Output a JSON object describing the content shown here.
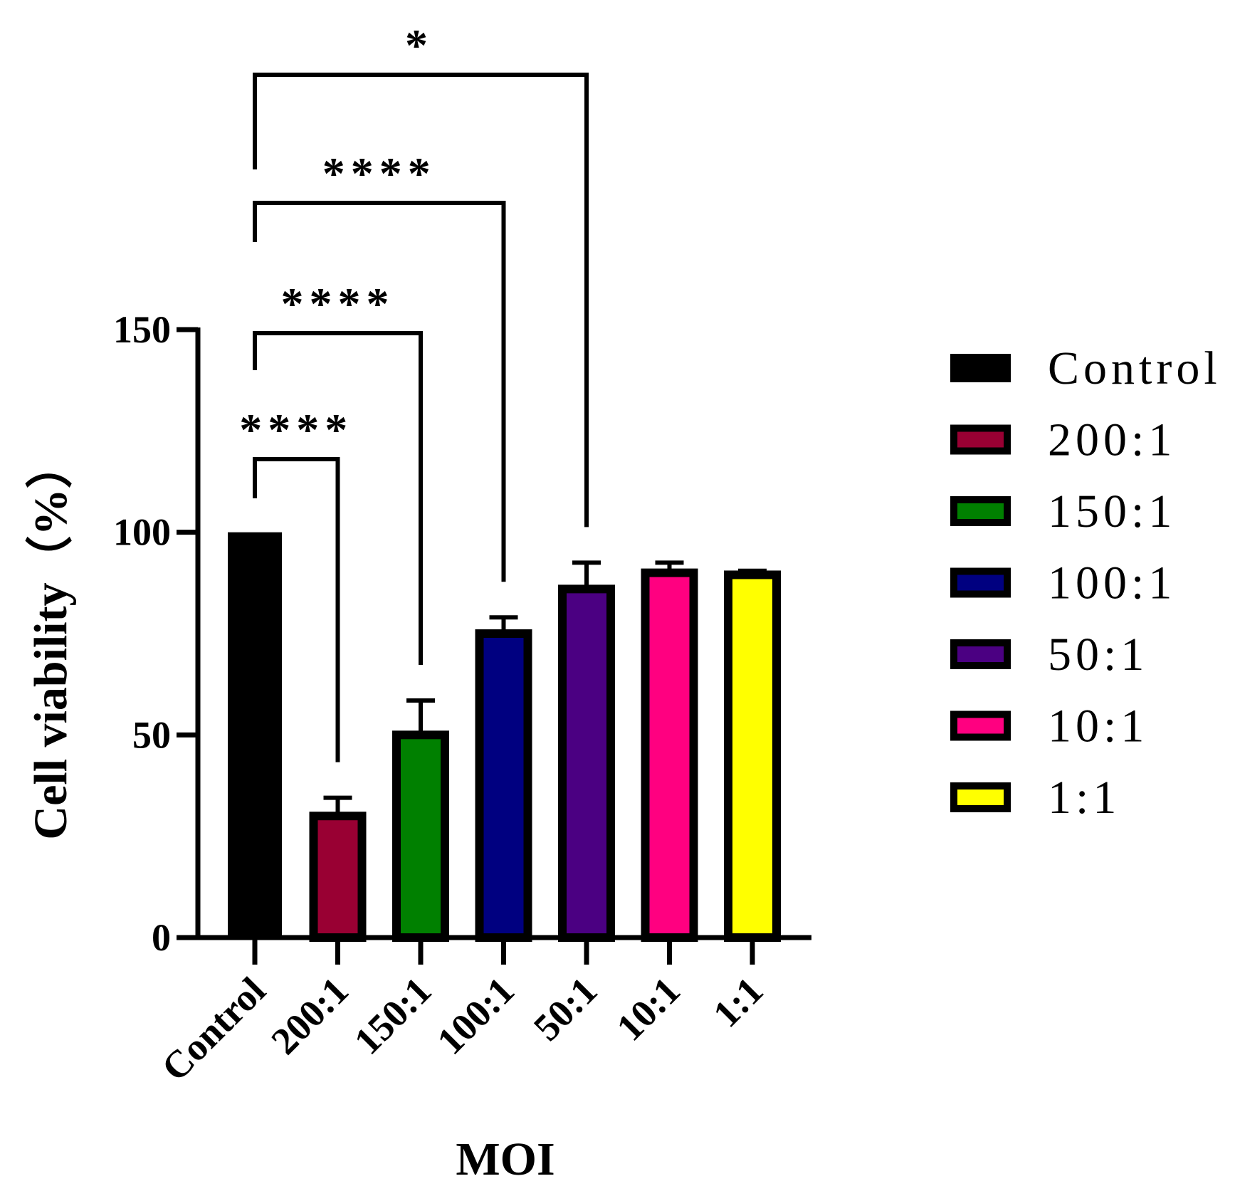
{
  "chart_data": {
    "type": "bar",
    "title": "",
    "xlabel": "MOI",
    "ylabel": "Cell viability（%）",
    "ylim": [
      0,
      150
    ],
    "yticks": [
      "0",
      "50",
      "100",
      "150"
    ],
    "categories": [
      "Control",
      "200:1",
      "150:1",
      "100:1",
      "50:1",
      "10:1",
      "1:1"
    ],
    "values": [
      100,
      30,
      50,
      75,
      86,
      90,
      89.5
    ],
    "errors": [
      0,
      4.5,
      8.5,
      4,
      6.5,
      2.5,
      1
    ],
    "colors": [
      "#000000",
      "#990033",
      "#008000",
      "#000080",
      "#4B0082",
      "#FF0080",
      "#FFFF00"
    ],
    "legend": {
      "position": "right",
      "entries": [
        "Control",
        "200:1",
        "150:1",
        "100:1",
        "50:1",
        "10:1",
        "1:1"
      ]
    },
    "significance": [
      {
        "from": "Control",
        "to": "200:1",
        "label": "****"
      },
      {
        "from": "Control",
        "to": "150:1",
        "label": "****"
      },
      {
        "from": "Control",
        "to": "100:1",
        "label": "****"
      },
      {
        "from": "Control",
        "to": "50:1",
        "label": "*"
      }
    ]
  }
}
